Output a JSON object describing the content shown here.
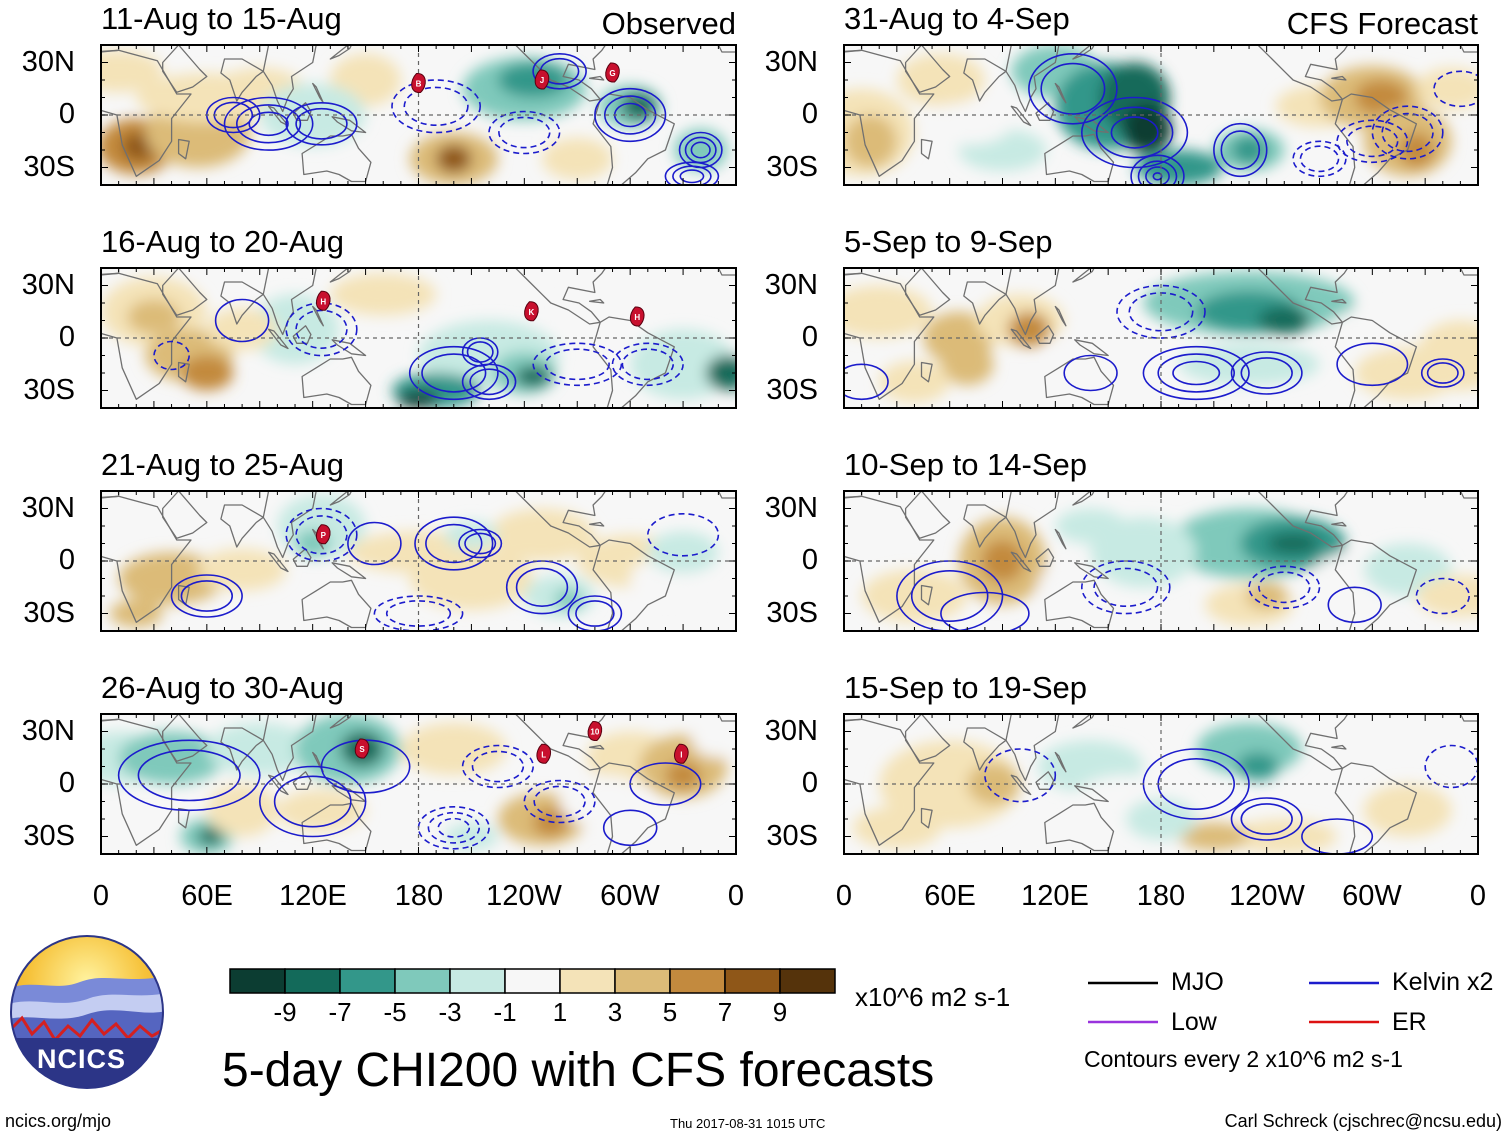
{
  "chart_data": {
    "type": "heatmap",
    "title": "5-day CHI200 with CFS forecasts",
    "observed_label": "Observed",
    "forecast_label": "CFS Forecast",
    "panels": [
      {
        "period": "11-Aug to 15-Aug",
        "kind": "observed",
        "storms": [
          {
            "label": "B",
            "lon": 180,
            "lat": 18
          },
          {
            "label": "J",
            "lon": 250,
            "lat": 20
          },
          {
            "label": "G",
            "lon": 290,
            "lat": 24
          }
        ]
      },
      {
        "period": "16-Aug to 20-Aug",
        "kind": "observed",
        "storms": [
          {
            "label": "H",
            "lon": 126,
            "lat": 21
          },
          {
            "label": "K",
            "lon": 244,
            "lat": 15
          },
          {
            "label": "H",
            "lon": 304,
            "lat": 12
          }
        ]
      },
      {
        "period": "21-Aug to 25-Aug",
        "kind": "observed",
        "storms": [
          {
            "label": "P",
            "lon": 126,
            "lat": 15
          }
        ]
      },
      {
        "period": "26-Aug to 30-Aug",
        "kind": "observed",
        "storms": [
          {
            "label": "S",
            "lon": 148,
            "lat": 20
          },
          {
            "label": "L",
            "lon": 251,
            "lat": 17
          },
          {
            "label": "10",
            "lon": 280,
            "lat": 30
          },
          {
            "label": "I",
            "lon": 329,
            "lat": 17
          }
        ]
      },
      {
        "period": "31-Aug to 4-Sep",
        "kind": "forecast",
        "storms": []
      },
      {
        "period": "5-Sep to 9-Sep",
        "kind": "forecast",
        "storms": []
      },
      {
        "period": "10-Sep to 14-Sep",
        "kind": "forecast",
        "storms": []
      },
      {
        "period": "15-Sep to 19-Sep",
        "kind": "forecast",
        "storms": []
      }
    ],
    "y_ticks": [
      "30N",
      "0",
      "30S"
    ],
    "x_ticks": [
      "0",
      "60E",
      "120E",
      "180",
      "120W",
      "60W",
      "0"
    ],
    "colorbar": {
      "colors": [
        "#0c3d32",
        "#136a5a",
        "#33978a",
        "#7fc9bb",
        "#c7eae3",
        "#f7f7f7",
        "#f4e3b8",
        "#dcbb78",
        "#c38a3e",
        "#8f5718",
        "#55330b"
      ],
      "tick_labels": [
        "-9",
        "-7",
        "-5",
        "-3",
        "-1",
        "1",
        "3",
        "5",
        "7",
        "9"
      ],
      "units": "x10^6 m2 s-1"
    },
    "legend": [
      {
        "label": "MJO",
        "color": "#000000"
      },
      {
        "label": "Kelvin x2",
        "color": "#1c1ccc"
      },
      {
        "label": "Low",
        "color": "#9933dd"
      },
      {
        "label": "ER",
        "color": "#dd1111"
      }
    ],
    "contour_note": "Contours every 2 x10^6 m2 s-1"
  },
  "logo_text": "NCICS",
  "url": "ncics.org/mjo",
  "timestamp": "Thu 2017-08-31 1015 UTC",
  "author": "Carl Schreck (cjschrec@ncsu.edu)"
}
